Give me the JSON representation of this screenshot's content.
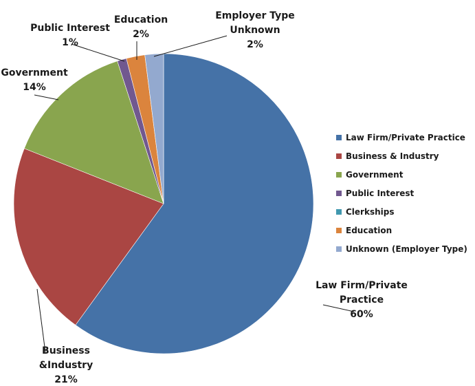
{
  "chart_data": {
    "type": "pie",
    "categories": [
      "Law Firm/Private Practice",
      "Business & Industry",
      "Government",
      "Public Interest",
      "Clerkships",
      "Education",
      "Unknown (Employer Type)"
    ],
    "values": [
      60,
      21,
      14,
      1,
      0,
      2,
      2
    ],
    "colors": [
      "#4572A7",
      "#AA4643",
      "#89A54E",
      "#71588F",
      "#4198AF",
      "#DB843D",
      "#93A9CF"
    ],
    "legend": {
      "position": "right",
      "entries": [
        "Law Firm/Private Practice",
        "Business & Industry",
        "Government",
        "Public Interest",
        "Clerkships",
        "Education",
        "Unknown (Employer Type)"
      ]
    },
    "data_labels": [
      {
        "slice": 0,
        "lines": [
          "Law Firm/Private",
          "Practice",
          "60%"
        ]
      },
      {
        "slice": 1,
        "lines": [
          "Business",
          "&Industry",
          "21%"
        ]
      },
      {
        "slice": 2,
        "lines": [
          "Government",
          "14%"
        ]
      },
      {
        "slice": 3,
        "lines": [
          "Public Interest",
          "1%"
        ]
      },
      {
        "slice": 5,
        "lines": [
          "Education",
          "2%"
        ]
      },
      {
        "slice": 6,
        "lines": [
          "Employer Type",
          "Unknown",
          "2%"
        ]
      }
    ]
  }
}
